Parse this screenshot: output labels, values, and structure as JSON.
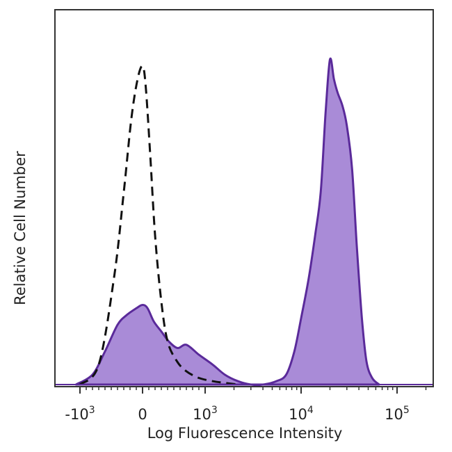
{
  "chart_data": {
    "type": "area",
    "title": "",
    "xlabel": "Log Fluorescence Intensity",
    "ylabel": "Relative Cell Number",
    "x_scale": "biexponential",
    "xlim": [
      -2000,
      300000
    ],
    "ylim": [
      0,
      1
    ],
    "grid": false,
    "legend": "none",
    "x_ticks": [
      {
        "value": -1000,
        "base": "-10",
        "exp": "3"
      },
      {
        "value": 0,
        "base": "0",
        "exp": ""
      },
      {
        "value": 1000,
        "base": "10",
        "exp": "3"
      },
      {
        "value": 10000,
        "base": "10",
        "exp": "4"
      },
      {
        "value": 100000,
        "base": "10",
        "exp": "5"
      }
    ],
    "series": [
      {
        "style": "filled",
        "color": "#a98bd7",
        "edge_color": "#5a2a9a",
        "x": [
          -1100,
          -800,
          -600,
          -400,
          -250,
          -100,
          0,
          80,
          180,
          300,
          420,
          560,
          700,
          900,
          1200,
          1600,
          2200,
          3000,
          4000,
          5500,
          7000,
          8500,
          10000,
          12000,
          14000,
          16000,
          18000,
          20000,
          22000,
          24000,
          27000,
          30000,
          34000,
          38000,
          43000,
          48000,
          55000,
          65000
        ],
        "y": [
          0,
          0.03,
          0.1,
          0.18,
          0.21,
          0.23,
          0.24,
          0.23,
          0.19,
          0.16,
          0.13,
          0.11,
          0.12,
          0.09,
          0.06,
          0.03,
          0.01,
          0.0,
          0.0,
          0.01,
          0.03,
          0.1,
          0.2,
          0.32,
          0.45,
          0.58,
          0.82,
          0.98,
          0.92,
          0.88,
          0.84,
          0.78,
          0.65,
          0.42,
          0.2,
          0.07,
          0.02,
          0
        ]
      },
      {
        "style": "dashed",
        "color": "#111111",
        "x": [
          -1000,
          -700,
          -450,
          -300,
          -180,
          -80,
          0,
          50,
          120,
          200,
          300,
          400,
          550,
          700,
          900,
          1200,
          1600,
          2200
        ],
        "y": [
          0,
          0.06,
          0.33,
          0.58,
          0.8,
          0.92,
          0.96,
          0.9,
          0.7,
          0.45,
          0.25,
          0.13,
          0.07,
          0.04,
          0.02,
          0.01,
          0.005,
          0
        ]
      }
    ]
  }
}
